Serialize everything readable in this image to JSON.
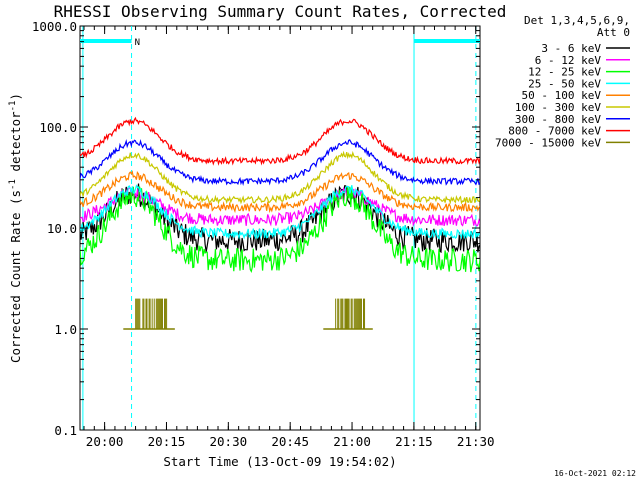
{
  "chart_data": {
    "type": "line",
    "title": "RHESSI Observing Summary Count Rates, Corrected",
    "xlabel": "Start Time (13-Oct-09 19:54:02)",
    "ylabel": "Corrected Count Rate (s⁻¹ detector⁻¹)",
    "ylabel_main": "Corrected Count Rate (s",
    "ylabel_sup1": "-1",
    "ylabel_mid": " detector",
    "ylabel_sup2": "-1",
    "ylabel_end": ")",
    "y_scale": "log",
    "ylim": [
      0.1,
      1000
    ],
    "xlim_minutes": [
      0,
      97
    ],
    "x_ticks": [
      {
        "minute": 5.97,
        "label": "20:00"
      },
      {
        "minute": 20.97,
        "label": "20:15"
      },
      {
        "minute": 35.97,
        "label": "20:30"
      },
      {
        "minute": 50.97,
        "label": "20:45"
      },
      {
        "minute": 65.97,
        "label": "21:00"
      },
      {
        "minute": 80.97,
        "label": "21:15"
      },
      {
        "minute": 95.97,
        "label": "21:30"
      }
    ],
    "y_ticks": [
      {
        "value": 1000,
        "label": "1000.0"
      },
      {
        "value": 100,
        "label": "100.0"
      },
      {
        "value": 10,
        "label": "10.0"
      },
      {
        "value": 1,
        "label": "1.0"
      },
      {
        "value": 0.1,
        "label": "0.1"
      }
    ],
    "legend": {
      "header": [
        "Det 1,3,4,5,6,9,",
        "Att 0"
      ],
      "placement": "right, outside plot"
    },
    "series": [
      {
        "name": "3 - 6 keV",
        "color": "#000000",
        "base": 7.5,
        "peak": 22,
        "noise": 0.12
      },
      {
        "name": "6 - 12 keV",
        "color": "#ff00ff",
        "base": 12,
        "peak": 22,
        "noise": 0.06
      },
      {
        "name": "12 - 25 keV",
        "color": "#00ff00",
        "base": 4.8,
        "peak": 21,
        "noise": 0.12
      },
      {
        "name": "25 - 50 keV",
        "color": "#00ffff",
        "base": 8.8,
        "peak": 24,
        "noise": 0.05
      },
      {
        "name": "50 - 100 keV",
        "color": "#ff8000",
        "base": 16,
        "peak": 33,
        "noise": 0.04
      },
      {
        "name": "100 - 300 keV",
        "color": "#c8c800",
        "base": 19,
        "peak": 53,
        "noise": 0.03
      },
      {
        "name": "300 - 800 keV",
        "color": "#0000ff",
        "base": 29,
        "peak": 70,
        "noise": 0.03
      },
      {
        "name": "800 - 7000 keV",
        "color": "#ff0000",
        "base": 46,
        "peak": 115,
        "noise": 0.03
      },
      {
        "name": "7000 - 15000 keV",
        "color": "#808000",
        "base": 1.0,
        "peak": 2.0,
        "noise": 0
      }
    ],
    "orbit_humps_minutes": [
      {
        "center": 13,
        "width": 13
      },
      {
        "center": 65,
        "width": 13
      }
    ],
    "count_bursts_minutes": [
      [
        13.5,
        21
      ],
      [
        62,
        69
      ]
    ],
    "night_segments_minutes": [
      [
        0,
        12.5
      ],
      [
        81,
        97
      ]
    ],
    "vertical_lines_minutes": [
      {
        "minute": 0.7,
        "style": "solid",
        "color": "#00ffff"
      },
      {
        "minute": 12.5,
        "style": "dashed",
        "color": "#00ffff"
      },
      {
        "minute": 81.0,
        "style": "solid",
        "color": "#00ffff"
      },
      {
        "minute": 96.0,
        "style": "dashed",
        "color": "#00ffff"
      }
    ],
    "flags": [
      {
        "minute": 13.0,
        "label": "N"
      }
    ]
  },
  "timestamp": "16-Oct-2021 02:12"
}
